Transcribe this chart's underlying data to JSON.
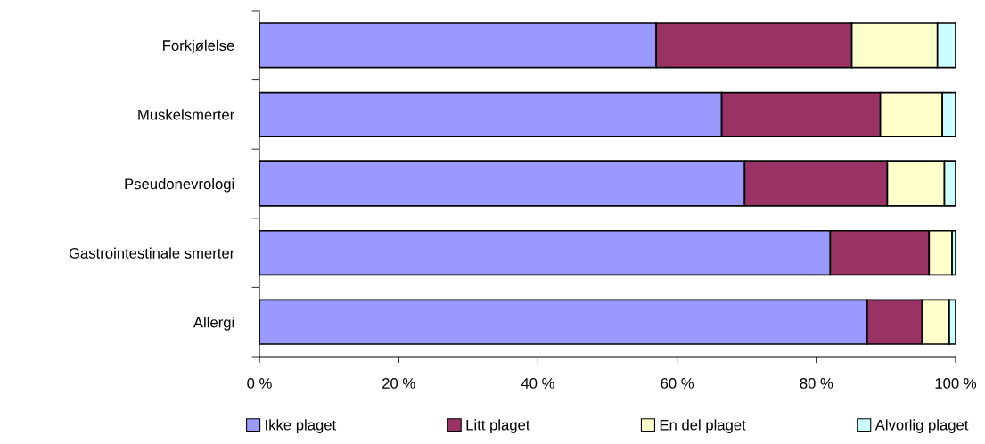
{
  "chart_data": {
    "type": "bar",
    "orientation": "horizontal",
    "stacked": true,
    "categories": [
      "Forkjølelse",
      "Muskelsmerter",
      "Pseudonevrologi",
      "Gastrointestinale smerter",
      "Allergi"
    ],
    "series": [
      {
        "name": "Ikke plaget",
        "color": "#9999ff",
        "values": [
          57.0,
          66.4,
          69.7,
          82.0,
          87.3
        ]
      },
      {
        "name": "Litt plaget",
        "color": "#993366",
        "values": [
          28.1,
          22.8,
          20.5,
          14.2,
          7.9
        ]
      },
      {
        "name": "En del plaget",
        "color": "#ffffcc",
        "values": [
          12.3,
          8.9,
          8.2,
          3.3,
          3.9
        ]
      },
      {
        "name": "Alvorlig plaget",
        "color": "#ccffff",
        "values": [
          2.6,
          1.9,
          1.6,
          0.5,
          0.9
        ]
      }
    ],
    "xlim": [
      0,
      100
    ],
    "xticks": [
      {
        "value": 0,
        "label": "0 %"
      },
      {
        "value": 20,
        "label": "20 %"
      },
      {
        "value": 40,
        "label": "40 %"
      },
      {
        "value": 60,
        "label": "60 %"
      },
      {
        "value": 80,
        "label": "80 %"
      },
      {
        "value": 100,
        "label": "100 %"
      }
    ],
    "grid": false,
    "legend": "bottom"
  }
}
